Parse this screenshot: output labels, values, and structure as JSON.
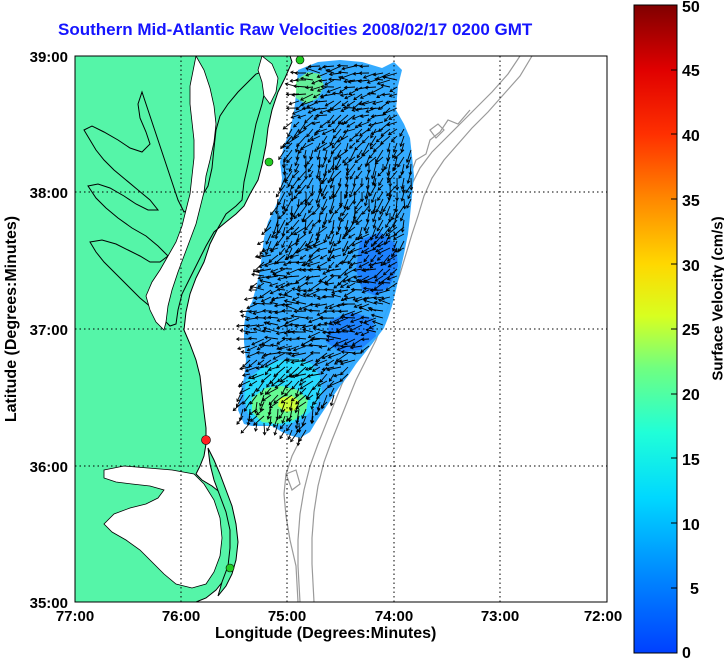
{
  "title": "Southern Mid-Atlantic Raw Velocities 2008/02/17 0200 GMT",
  "x_axis": {
    "label": "Longitude (Degrees:Minutes)",
    "ticks": [
      "77:00",
      "76:00",
      "75:00",
      "74:00",
      "73:00",
      "72:00"
    ]
  },
  "y_axis": {
    "label": "Latitude (Degrees:Minutes)",
    "ticks": [
      "39:00",
      "38:00",
      "37:00",
      "36:00",
      "35:00"
    ]
  },
  "colorbar": {
    "label": "Surface Velocity (cm/s)",
    "ticks": [
      "50",
      "45",
      "40",
      "35",
      "30",
      "25",
      "20",
      "15",
      "10",
      "5",
      "0"
    ],
    "range": [
      0,
      50
    ],
    "colormap": "jet"
  },
  "colors": {
    "title": "#1515ff",
    "land": "#55f5a8",
    "ocean": "#ffffff",
    "velocity_field": "#2aa6ff",
    "station_green": "#22cc22",
    "station_red": "#ff2020",
    "bathymetry": "#9a9a9a",
    "grid": "#000000"
  },
  "map": {
    "lon_range": [
      -77,
      -72
    ],
    "lat_range": [
      35,
      39
    ],
    "grid": "dotted",
    "stations": [
      {
        "color": "green"
      },
      {
        "color": "green"
      },
      {
        "color": "red"
      },
      {
        "color": "green"
      }
    ]
  }
}
